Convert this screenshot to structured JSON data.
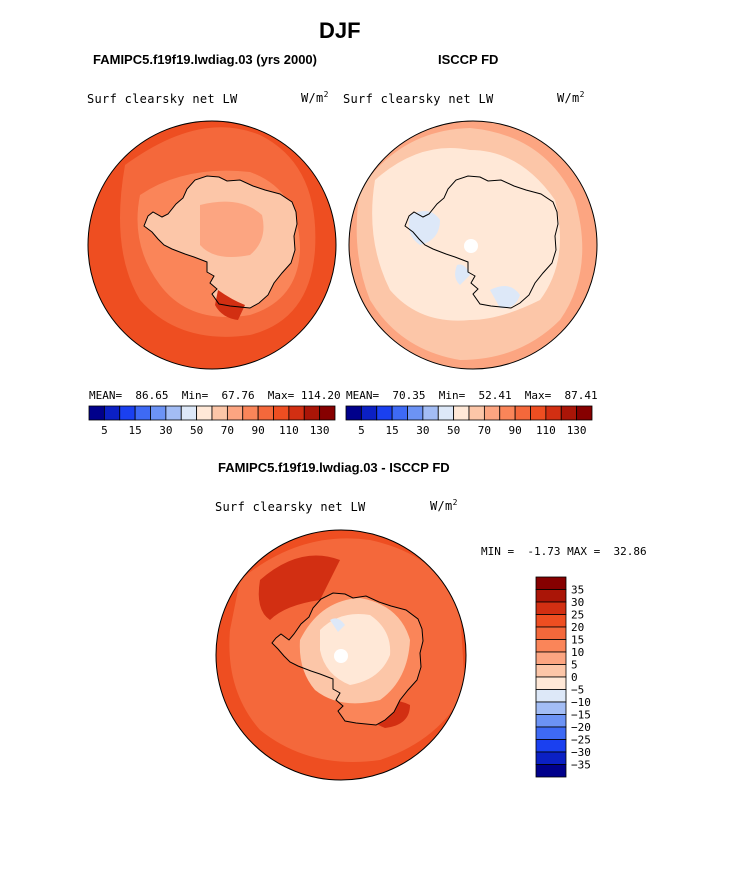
{
  "title": "DJF",
  "colors": [
    "#00008b",
    "#0b20c4",
    "#1a40f0",
    "#3e6af5",
    "#6c93f5",
    "#a3bdf5",
    "#dde8f8",
    "#ffe8d7",
    "#fcc6a8",
    "#fca581",
    "#fa8559",
    "#f4683b",
    "#ee4e21",
    "#d22f12",
    "#aa1507",
    "#860000"
  ],
  "diff_colors": [
    "#00008b",
    "#0b20c4",
    "#1a40f0",
    "#3e6af5",
    "#6c93f5",
    "#a3bdf5",
    "#dde8f8",
    "#ffe8d7",
    "#fcc6a8",
    "#fca581",
    "#fa8559",
    "#f4683b",
    "#ee4e21",
    "#d22f12",
    "#aa1507",
    "#860000"
  ],
  "panels": [
    {
      "header": "FAMIPC5.f19f19.lwdiag.03 (yrs 2000)",
      "left_label": "Surf clearsky net LW",
      "unit_base": "W/m",
      "unit_exp": "2",
      "stats": "MEAN=  86.65  Min=  67.76  Max= 114.20"
    },
    {
      "header": "ISCCP FD",
      "left_label": "Surf clearsky net LW",
      "unit_base": "W/m",
      "unit_exp": "2",
      "stats": "MEAN=  70.35  Min=  52.41  Max=  87.41"
    },
    {
      "header": "FAMIPC5.f19f19.lwdiag.03 - ISCCP FD",
      "left_label": "Surf clearsky net LW",
      "unit_base": "W/m",
      "unit_exp": "2",
      "stats": "MIN =  -1.73 MAX =  32.86"
    }
  ],
  "chart_data": [
    {
      "type": "heatmap",
      "title": "Surf clearsky net LW",
      "subtitle": "FAMIPC5.f19f19.lwdiag.03 (yrs 2000)",
      "units": "W/m2",
      "projection": "south polar stereographic",
      "mean": 86.65,
      "min": 67.76,
      "max": 114.2,
      "levels": [
        5,
        10,
        15,
        20,
        30,
        40,
        50,
        60,
        70,
        80,
        90,
        100,
        110,
        120,
        130
      ],
      "colorbar_labels": [
        "5",
        "15",
        "30",
        "50",
        "70",
        "90",
        "110",
        "130"
      ]
    },
    {
      "type": "heatmap",
      "title": "Surf clearsky net LW",
      "subtitle": "ISCCP FD",
      "units": "W/m2",
      "projection": "south polar stereographic",
      "mean": 70.35,
      "min": 52.41,
      "max": 87.41,
      "levels": [
        5,
        10,
        15,
        20,
        30,
        40,
        50,
        60,
        70,
        80,
        90,
        100,
        110,
        120,
        130
      ],
      "colorbar_labels": [
        "5",
        "15",
        "30",
        "50",
        "70",
        "90",
        "110",
        "130"
      ]
    },
    {
      "type": "heatmap",
      "title": "Surf clearsky net LW",
      "subtitle": "FAMIPC5.f19f19.lwdiag.03 - ISCCP FD",
      "units": "W/m2",
      "projection": "south polar stereographic",
      "min": -1.73,
      "max": 32.86,
      "levels": [
        -35,
        -30,
        -25,
        -20,
        -15,
        -10,
        -5,
        0,
        5,
        10,
        15,
        20,
        25,
        30,
        35
      ],
      "colorbar_labels": [
        "35",
        "30",
        "25",
        "20",
        "15",
        "10",
        "5",
        "0",
        "−5",
        "−10",
        "−15",
        "−20",
        "−25",
        "−30",
        "−35"
      ]
    }
  ]
}
